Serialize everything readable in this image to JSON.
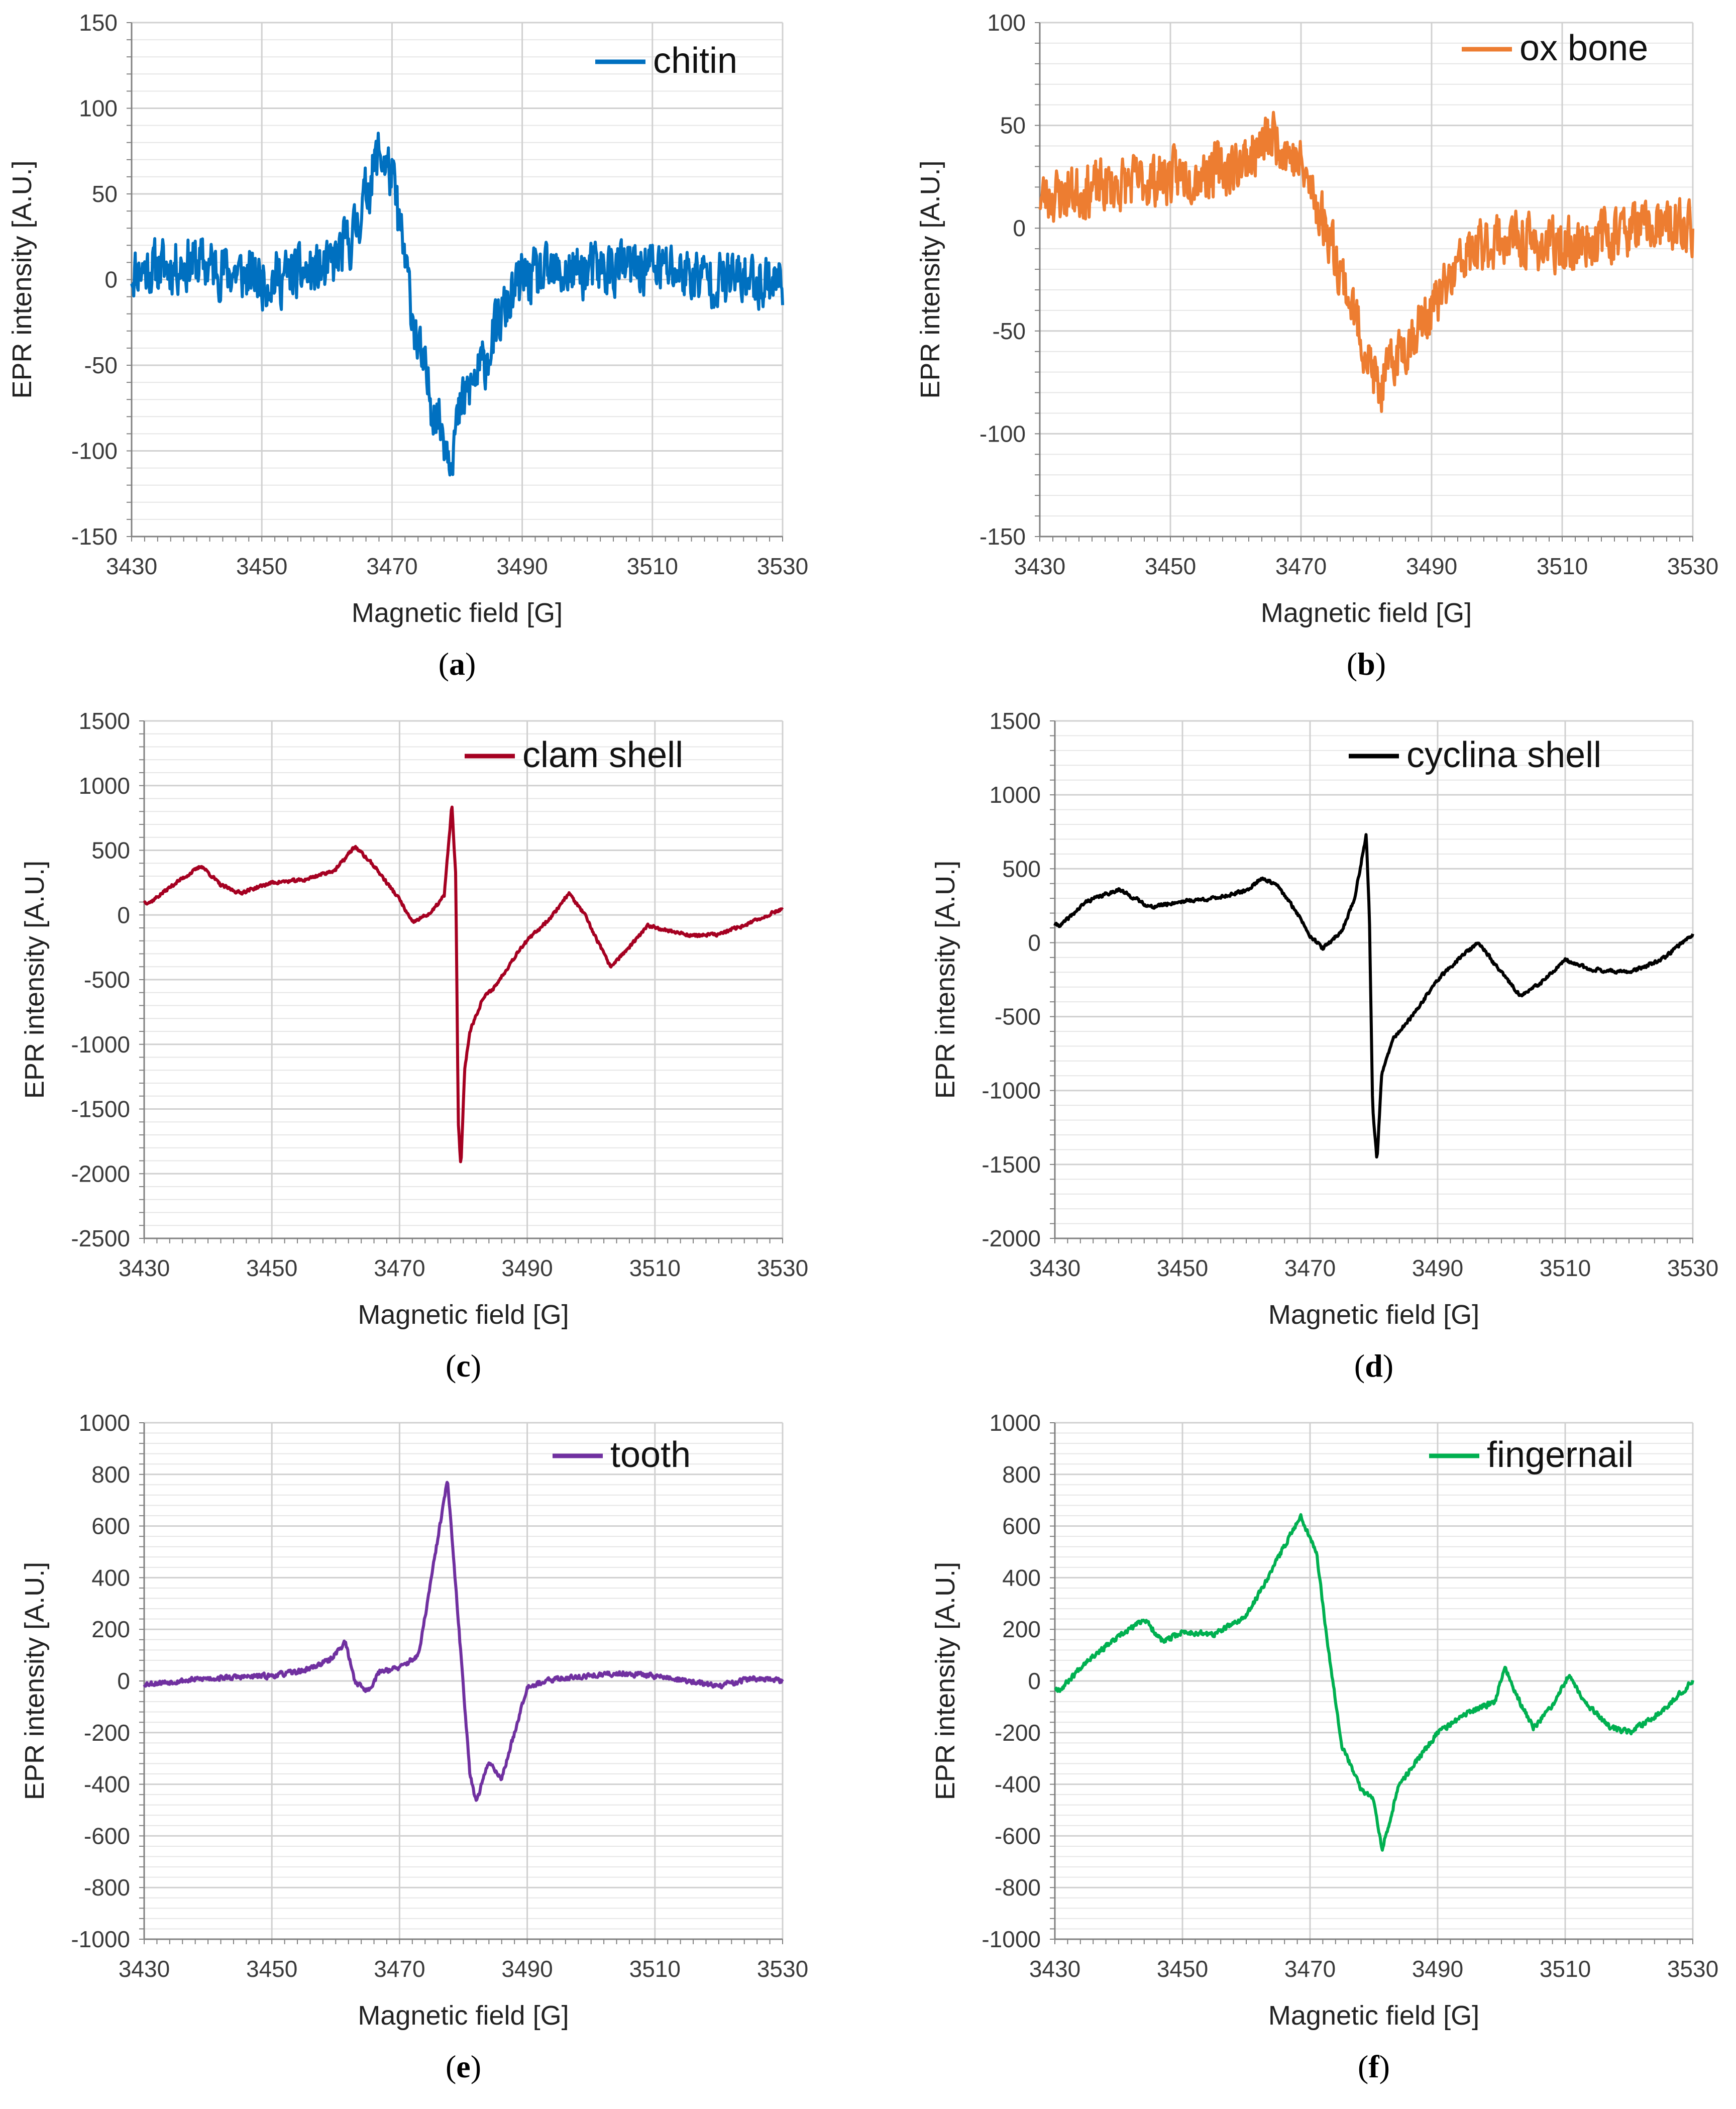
{
  "chart_data": [
    {
      "panel": "a",
      "type": "line",
      "legend": "chitin",
      "color": "#0070c0",
      "xlabel": "Magnetic field [G]",
      "ylabel": "EPR intensity [A.U.]",
      "xlim": [
        3430,
        3530
      ],
      "ylim": [
        -150,
        150
      ],
      "xticks": [
        3430,
        3450,
        3470,
        3490,
        3510,
        3530
      ],
      "yticks": [
        -150,
        -100,
        -50,
        0,
        50,
        100,
        150
      ],
      "noise": 22,
      "seed": 11,
      "x": [
        3430,
        3440,
        3450,
        3460,
        3464,
        3468,
        3470,
        3472,
        3474,
        3476,
        3478,
        3479,
        3481,
        3484,
        3487,
        3490,
        3500,
        3510,
        3520,
        3530
      ],
      "y": [
        5,
        10,
        0,
        5,
        25,
        75,
        60,
        10,
        -40,
        -70,
        -90,
        -100,
        -70,
        -50,
        -20,
        0,
        5,
        8,
        0,
        0
      ]
    },
    {
      "panel": "b",
      "type": "line",
      "legend": "ox bone",
      "color": "#ed7d31",
      "xlabel": "Magnetic field [G]",
      "ylabel": "EPR intensity [A.U.]",
      "xlim": [
        3430,
        3530
      ],
      "ylim": [
        -150,
        100
      ],
      "xticks": [
        3430,
        3450,
        3470,
        3490,
        3510,
        3530
      ],
      "yticks": [
        -150,
        -100,
        -50,
        0,
        50,
        100
      ],
      "noise": 18,
      "seed": 23,
      "x": [
        3430,
        3440,
        3450,
        3460,
        3466,
        3470,
        3474,
        3477,
        3480,
        3482,
        3485,
        3490,
        3495,
        3500,
        3510,
        3520,
        3530
      ],
      "y": [
        15,
        20,
        25,
        30,
        45,
        30,
        0,
        -30,
        -60,
        -80,
        -60,
        -40,
        -15,
        -5,
        -10,
        0,
        0
      ]
    },
    {
      "panel": "c",
      "type": "line",
      "legend": "clam shell",
      "color": "#a50021",
      "xlabel": "Magnetic field [G]",
      "ylabel": "EPR intensity [A.U.]",
      "xlim": [
        3430,
        3530
      ],
      "ylim": [
        -2500,
        1500
      ],
      "xticks": [
        3430,
        3450,
        3470,
        3490,
        3510,
        3530
      ],
      "yticks": [
        -2500,
        -2000,
        -1500,
        -1000,
        -500,
        0,
        500,
        1000,
        1500
      ],
      "noise": 18,
      "seed": 37,
      "x": [
        3431,
        3435,
        3439,
        3442,
        3445,
        3450,
        3455,
        3460,
        3463,
        3466,
        3470,
        3472,
        3475,
        3477,
        3478.2,
        3478.8,
        3479.2,
        3479.6,
        3480.2,
        3481,
        3483,
        3485,
        3489,
        3494,
        3496.5,
        3499,
        3503,
        3506,
        3509,
        3512,
        3516,
        3520,
        3525,
        3530
      ],
      "y": [
        100,
        250,
        380,
        230,
        170,
        250,
        270,
        350,
        530,
        380,
        120,
        -60,
        20,
        150,
        850,
        300,
        -1600,
        -1950,
        -1200,
        -900,
        -650,
        -550,
        -250,
        0,
        170,
        0,
        -400,
        -250,
        -80,
        -120,
        -160,
        -150,
        -60,
        50
      ]
    },
    {
      "panel": "d",
      "type": "line",
      "legend": "cyclina shell",
      "color": "#000000",
      "xlabel": "Magnetic field [G]",
      "ylabel": "EPR intensity [A.U.]",
      "xlim": [
        3430,
        3530
      ],
      "ylim": [
        -2000,
        1500
      ],
      "xticks": [
        3430,
        3450,
        3470,
        3490,
        3510,
        3530
      ],
      "yticks": [
        -2000,
        -1500,
        -1000,
        -500,
        0,
        500,
        1000,
        1500
      ],
      "noise": 16,
      "seed": 41,
      "x": [
        3431,
        3435,
        3440,
        3445,
        3450,
        3455,
        3460,
        3462.5,
        3465,
        3468,
        3470,
        3472,
        3475,
        3477,
        3478.8,
        3479.3,
        3479.8,
        3480.5,
        3481.2,
        3483,
        3486,
        3490,
        3494,
        3496.5,
        3499,
        3503,
        3506,
        3510,
        3514,
        3520,
        3525,
        3530
      ],
      "y": [
        120,
        280,
        360,
        240,
        280,
        300,
        350,
        440,
        380,
        200,
        50,
        -40,
        80,
        300,
        730,
        200,
        -1100,
        -1480,
        -900,
        -650,
        -500,
        -250,
        -80,
        0,
        -150,
        -360,
        -280,
        -120,
        -180,
        -200,
        -120,
        60
      ]
    },
    {
      "panel": "e",
      "type": "line",
      "legend": "tooth",
      "color": "#7030a0",
      "xlabel": "Magnetic field [G]",
      "ylabel": "EPR intensity [A.U.]",
      "xlim": [
        3430,
        3530
      ],
      "ylim": [
        -1000,
        1000
      ],
      "xticks": [
        3430,
        3450,
        3470,
        3490,
        3510,
        3530
      ],
      "yticks": [
        -1000,
        -800,
        -600,
        -400,
        -200,
        0,
        200,
        400,
        600,
        800,
        1000
      ],
      "noise": 14,
      "seed": 53,
      "x": [
        3431,
        3440,
        3450,
        3455,
        3459,
        3461.5,
        3463,
        3465,
        3467,
        3470,
        3473,
        3475,
        3477.5,
        3479,
        3481,
        3482,
        3484,
        3486,
        3488,
        3490,
        3495,
        3500,
        3505,
        3510,
        3515,
        3520,
        3525,
        3530
      ],
      "y": [
        -10,
        10,
        20,
        40,
        80,
        150,
        0,
        -40,
        40,
        50,
        100,
        400,
        780,
        300,
        -350,
        -470,
        -310,
        -380,
        -200,
        -20,
        10,
        20,
        30,
        20,
        0,
        -20,
        10,
        0
      ]
    },
    {
      "panel": "f",
      "type": "line",
      "legend": "fingernail",
      "color": "#00b050",
      "xlabel": "Magnetic field [G]",
      "ylabel": "EPR intensity [A.U.]",
      "xlim": [
        3430,
        3530
      ],
      "ylim": [
        -1000,
        1000
      ],
      "xticks": [
        3430,
        3450,
        3470,
        3490,
        3510,
        3530
      ],
      "yticks": [
        -1000,
        -800,
        -600,
        -400,
        -200,
        0,
        200,
        400,
        600,
        800,
        1000
      ],
      "noise": 14,
      "seed": 67,
      "x": [
        3431,
        3435,
        3440,
        3444,
        3447,
        3450,
        3455,
        3460,
        3464,
        3468.5,
        3471,
        3473,
        3475,
        3478,
        3480,
        3481.3,
        3484,
        3490,
        3495,
        3499,
        3500.5,
        3502,
        3505,
        3508,
        3510.5,
        3513,
        3517,
        3520,
        3525,
        3530
      ],
      "y": [
        -30,
        80,
        170,
        240,
        150,
        190,
        180,
        250,
        430,
        640,
        500,
        100,
        -250,
        -420,
        -460,
        -650,
        -400,
        -200,
        -120,
        -80,
        60,
        -40,
        -180,
        -100,
        20,
        -80,
        -180,
        -200,
        -120,
        0
      ]
    }
  ],
  "panel_labels": [
    "a",
    "b",
    "c",
    "d",
    "e",
    "f"
  ]
}
